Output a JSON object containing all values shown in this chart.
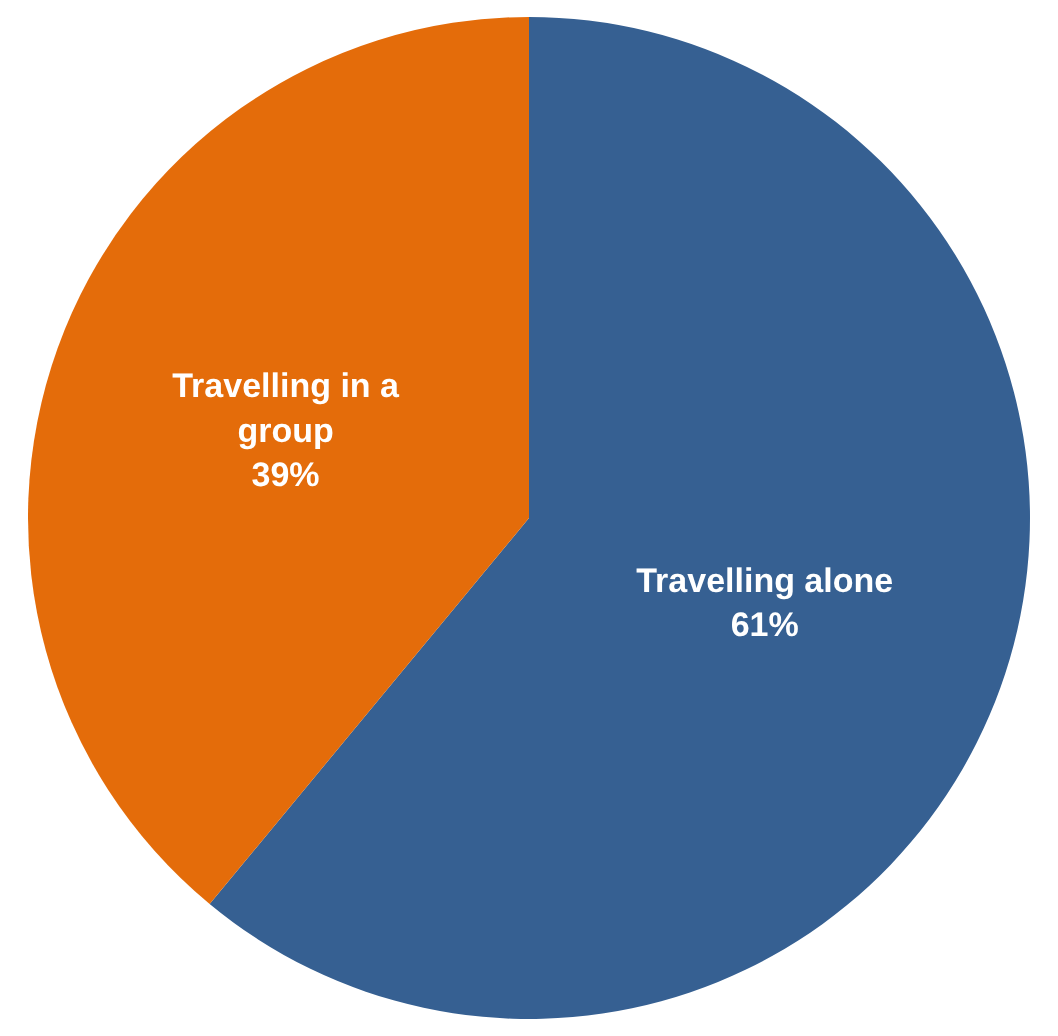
{
  "chart_data": {
    "type": "pie",
    "categories": [
      "Travelling alone",
      "Travelling in a group"
    ],
    "values": [
      61,
      39
    ],
    "colors": [
      "#366092",
      "#e46c0a"
    ],
    "value_labels": [
      "61%",
      "39%"
    ],
    "legend": false
  }
}
